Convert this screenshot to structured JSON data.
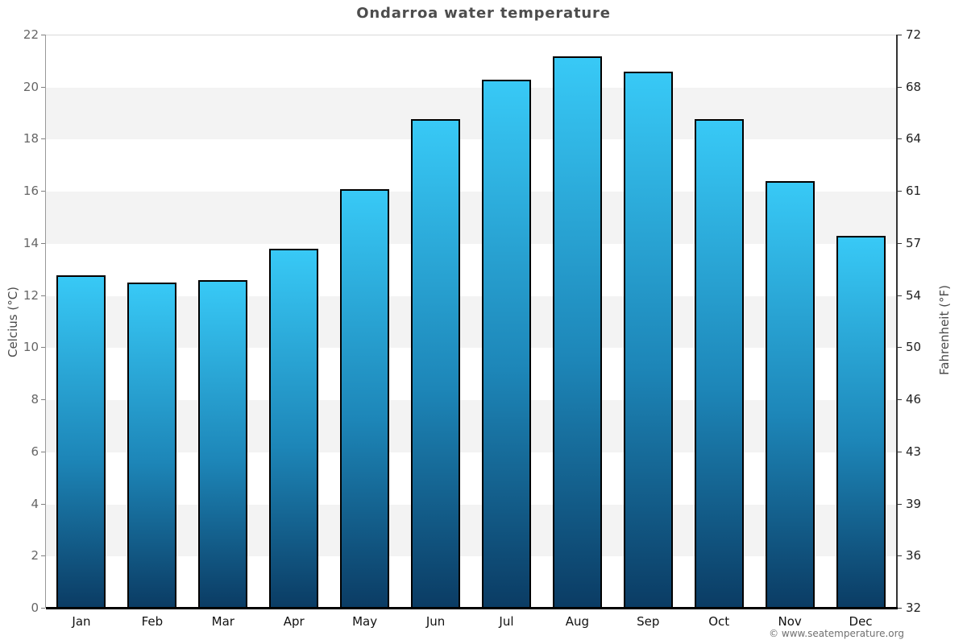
{
  "title": "Ondarroa water temperature",
  "watermark": "© www.seatemperature.org",
  "chart_data": {
    "type": "bar",
    "title": "Ondarroa water temperature",
    "categories": [
      "Jan",
      "Feb",
      "Mar",
      "Apr",
      "May",
      "Jun",
      "Jul",
      "Aug",
      "Sep",
      "Oct",
      "Nov",
      "Dec"
    ],
    "values": [
      12.8,
      12.5,
      12.6,
      13.8,
      16.1,
      18.8,
      20.3,
      21.2,
      20.6,
      18.8,
      16.4,
      14.3
    ],
    "unit": "°C",
    "ylabel_left": "Celcius (°C)",
    "ylabel_right": "Fahrenheit (°F)",
    "ylim": [
      0,
      22
    ],
    "yticks_celsius": [
      0,
      2,
      4,
      6,
      8,
      10,
      12,
      14,
      16,
      18,
      20,
      22
    ],
    "yticks_fahrenheit_labels": [
      "32",
      "36",
      "39",
      "43",
      "46",
      "50",
      "54",
      "57",
      "61",
      "64",
      "68",
      "72"
    ],
    "grid": "alternating-bands",
    "legend": "none",
    "colors": {
      "bar_gradient_top": "#38c9f6",
      "bar_gradient_mid": "#1d86b8",
      "bar_gradient_bottom": "#0b3c64",
      "bar_border": "#000000",
      "band": "#f3f3f3",
      "title_text": "#4d4d4d",
      "axis_bottom": "#000000"
    }
  }
}
